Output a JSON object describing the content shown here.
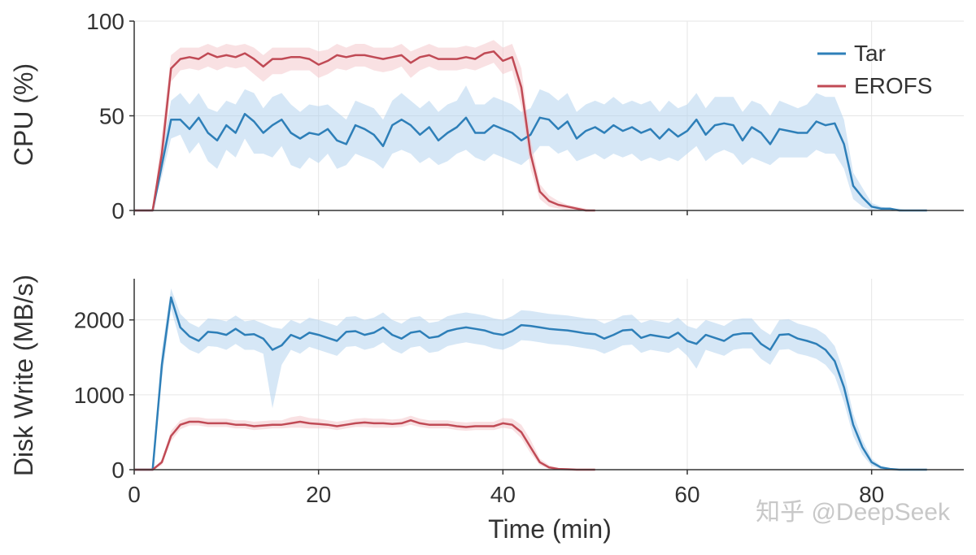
{
  "chart_data": [
    {
      "type": "line",
      "ylabel": "CPU (%)",
      "xlabel": "",
      "xlim": [
        0,
        90
      ],
      "ylim": [
        0,
        100
      ],
      "yticks": [
        0,
        50,
        100
      ],
      "xticks": [
        0,
        20,
        40,
        60,
        80
      ],
      "grid": true,
      "legend": "top-right",
      "series": [
        {
          "name": "Tar",
          "color": "#2e7fb8",
          "band_color": "#aecfee",
          "x": [
            0,
            1,
            2,
            3,
            4,
            5,
            6,
            7,
            8,
            9,
            10,
            11,
            12,
            13,
            14,
            15,
            16,
            17,
            18,
            19,
            20,
            21,
            22,
            23,
            24,
            25,
            26,
            27,
            28,
            29,
            30,
            31,
            32,
            33,
            34,
            35,
            36,
            37,
            38,
            39,
            40,
            41,
            42,
            43,
            44,
            45,
            46,
            47,
            48,
            49,
            50,
            51,
            52,
            53,
            54,
            55,
            56,
            57,
            58,
            59,
            60,
            61,
            62,
            63,
            64,
            65,
            66,
            67,
            68,
            69,
            70,
            71,
            72,
            73,
            74,
            75,
            76,
            77,
            78,
            79,
            80,
            81,
            82,
            83,
            84,
            85,
            86
          ],
          "y": [
            0,
            0,
            0,
            24,
            48,
            48,
            43,
            49,
            41,
            37,
            45,
            41,
            51,
            47,
            41,
            45,
            48,
            41,
            38,
            41,
            40,
            43,
            37,
            35,
            45,
            43,
            40,
            34,
            45,
            48,
            45,
            40,
            44,
            37,
            41,
            44,
            49,
            41,
            41,
            45,
            43,
            41,
            37,
            40,
            49,
            48,
            43,
            47,
            38,
            42,
            44,
            41,
            45,
            42,
            44,
            41,
            43,
            38,
            43,
            39,
            42,
            48,
            40,
            45,
            46,
            45,
            37,
            44,
            41,
            35,
            43,
            42,
            41,
            41,
            47,
            45,
            46,
            35,
            13,
            7,
            2,
            1,
            1,
            0,
            0,
            0,
            0
          ],
          "low": [
            0,
            0,
            0,
            18,
            38,
            40,
            30,
            36,
            26,
            22,
            32,
            28,
            38,
            30,
            30,
            28,
            34,
            24,
            22,
            28,
            25,
            30,
            22,
            24,
            30,
            28,
            26,
            22,
            30,
            32,
            30,
            25,
            28,
            24,
            26,
            30,
            32,
            28,
            26,
            30,
            28,
            26,
            24,
            28,
            34,
            34,
            30,
            32,
            26,
            28,
            30,
            27,
            30,
            28,
            30,
            26,
            28,
            26,
            28,
            26,
            30,
            34,
            26,
            30,
            32,
            30,
            24,
            28,
            26,
            24,
            28,
            28,
            28,
            28,
            32,
            30,
            30,
            22,
            6,
            2,
            0,
            0,
            0,
            0,
            0,
            0,
            0
          ],
          "high": [
            0,
            0,
            0,
            30,
            58,
            62,
            56,
            62,
            54,
            52,
            58,
            56,
            64,
            62,
            54,
            60,
            62,
            56,
            52,
            56,
            55,
            56,
            52,
            48,
            58,
            56,
            54,
            48,
            58,
            62,
            58,
            54,
            58,
            52,
            56,
            58,
            66,
            56,
            56,
            60,
            58,
            56,
            52,
            54,
            64,
            62,
            58,
            62,
            52,
            56,
            58,
            56,
            60,
            56,
            58,
            56,
            58,
            52,
            58,
            54,
            56,
            62,
            54,
            60,
            60,
            60,
            52,
            58,
            56,
            50,
            58,
            56,
            54,
            56,
            62,
            60,
            60,
            48,
            20,
            12,
            4,
            2,
            1,
            1,
            0,
            0,
            0
          ]
        },
        {
          "name": "EROFS",
          "color": "#c04a55",
          "band_color": "#f4c3c8",
          "x": [
            0,
            1,
            2,
            3,
            4,
            5,
            6,
            7,
            8,
            9,
            10,
            11,
            12,
            13,
            14,
            15,
            16,
            17,
            18,
            19,
            20,
            21,
            22,
            23,
            24,
            25,
            26,
            27,
            28,
            29,
            30,
            31,
            32,
            33,
            34,
            35,
            36,
            37,
            38,
            39,
            40,
            41,
            42,
            43,
            44,
            45,
            46,
            47,
            48,
            49,
            50
          ],
          "y": [
            0,
            0,
            0,
            30,
            75,
            80,
            81,
            80,
            83,
            81,
            82,
            81,
            83,
            80,
            76,
            80,
            80,
            81,
            81,
            80,
            77,
            79,
            82,
            81,
            82,
            82,
            81,
            80,
            81,
            82,
            78,
            81,
            82,
            80,
            80,
            80,
            81,
            80,
            83,
            84,
            79,
            81,
            65,
            30,
            10,
            5,
            3,
            2,
            1,
            0,
            0
          ],
          "low": [
            0,
            0,
            0,
            20,
            68,
            74,
            75,
            74,
            76,
            74,
            76,
            75,
            76,
            72,
            68,
            72,
            72,
            74,
            74,
            74,
            70,
            72,
            75,
            74,
            76,
            76,
            74,
            73,
            74,
            76,
            70,
            74,
            76,
            74,
            74,
            74,
            75,
            74,
            76,
            78,
            72,
            74,
            55,
            22,
            6,
            2,
            1,
            0,
            0,
            0,
            0
          ],
          "high": [
            0,
            0,
            0,
            40,
            82,
            86,
            86,
            86,
            88,
            86,
            88,
            87,
            88,
            86,
            82,
            86,
            86,
            86,
            86,
            86,
            84,
            85,
            88,
            86,
            88,
            88,
            86,
            86,
            86,
            88,
            84,
            86,
            88,
            86,
            86,
            86,
            87,
            86,
            88,
            90,
            86,
            88,
            75,
            38,
            14,
            8,
            5,
            3,
            2,
            1,
            0
          ]
        }
      ]
    },
    {
      "type": "line",
      "ylabel": "Disk Write (MB/s)",
      "xlabel": "Time (min)",
      "xlim": [
        0,
        90
      ],
      "ylim": [
        0,
        2550
      ],
      "yticks": [
        0,
        1000,
        2000
      ],
      "xticks": [
        0,
        20,
        40,
        60,
        80
      ],
      "grid": true,
      "series": [
        {
          "name": "Tar",
          "color": "#2e7fb8",
          "band_color": "#aecfee",
          "x": [
            0,
            1,
            2,
            3,
            4,
            5,
            6,
            7,
            8,
            9,
            10,
            11,
            12,
            13,
            14,
            15,
            16,
            17,
            18,
            19,
            20,
            21,
            22,
            23,
            24,
            25,
            26,
            27,
            28,
            29,
            30,
            31,
            32,
            33,
            34,
            35,
            36,
            37,
            38,
            39,
            40,
            41,
            42,
            43,
            44,
            45,
            46,
            47,
            48,
            49,
            50,
            51,
            52,
            53,
            54,
            55,
            56,
            57,
            58,
            59,
            60,
            61,
            62,
            63,
            64,
            65,
            66,
            67,
            68,
            69,
            70,
            71,
            72,
            73,
            74,
            75,
            76,
            77,
            78,
            79,
            80,
            81,
            82,
            83,
            84,
            85,
            86
          ],
          "y": [
            0,
            0,
            0,
            1400,
            2300,
            1900,
            1780,
            1720,
            1840,
            1830,
            1800,
            1880,
            1800,
            1810,
            1750,
            1600,
            1660,
            1800,
            1750,
            1830,
            1800,
            1760,
            1720,
            1840,
            1850,
            1800,
            1830,
            1900,
            1800,
            1750,
            1830,
            1850,
            1760,
            1780,
            1850,
            1880,
            1900,
            1880,
            1860,
            1820,
            1800,
            1850,
            1930,
            1920,
            1900,
            1880,
            1870,
            1860,
            1840,
            1820,
            1810,
            1750,
            1800,
            1860,
            1870,
            1760,
            1800,
            1780,
            1760,
            1830,
            1720,
            1680,
            1800,
            1760,
            1720,
            1800,
            1820,
            1820,
            1680,
            1600,
            1800,
            1810,
            1750,
            1720,
            1680,
            1600,
            1450,
            1100,
            600,
            300,
            100,
            30,
            10,
            0,
            0,
            0,
            0
          ],
          "low": [
            0,
            0,
            0,
            1200,
            2150,
            1700,
            1600,
            1550,
            1650,
            1640,
            1600,
            1680,
            1600,
            1600,
            1550,
            820,
            1400,
            1600,
            1550,
            1640,
            1600,
            1560,
            1520,
            1640,
            1650,
            1600,
            1630,
            1700,
            1600,
            1550,
            1630,
            1650,
            1560,
            1580,
            1650,
            1680,
            1700,
            1680,
            1660,
            1620,
            1600,
            1650,
            1730,
            1720,
            1700,
            1680,
            1670,
            1660,
            1640,
            1620,
            1600,
            1550,
            1600,
            1660,
            1670,
            1560,
            1600,
            1580,
            1560,
            1630,
            1520,
            1350,
            1600,
            1560,
            1520,
            1600,
            1620,
            1620,
            1480,
            1400,
            1600,
            1610,
            1550,
            1520,
            1480,
            1400,
            1250,
            900,
            450,
            200,
            50,
            10,
            0,
            0,
            0,
            0,
            0
          ],
          "high": [
            0,
            0,
            0,
            1600,
            2420,
            2080,
            1960,
            1900,
            2020,
            2010,
            1980,
            2060,
            1980,
            2000,
            1950,
            1900,
            1880,
            2000,
            1950,
            2030,
            2000,
            1960,
            1920,
            2040,
            2050,
            2000,
            2030,
            2100,
            2000,
            1950,
            2030,
            2050,
            1960,
            1980,
            2050,
            2080,
            2100,
            2080,
            2060,
            2020,
            2000,
            2050,
            2130,
            2120,
            2100,
            2080,
            2070,
            2060,
            2040,
            2020,
            2010,
            1950,
            2000,
            2060,
            2070,
            1960,
            2000,
            1980,
            1960,
            2030,
            1920,
            1880,
            2000,
            1960,
            1920,
            2000,
            2020,
            2020,
            1880,
            1800,
            2000,
            2010,
            1950,
            1920,
            1880,
            1800,
            1650,
            1300,
            750,
            400,
            150,
            50,
            20,
            5,
            0,
            0,
            0
          ]
        },
        {
          "name": "EROFS",
          "color": "#c04a55",
          "band_color": "#f4c3c8",
          "x": [
            0,
            1,
            2,
            3,
            4,
            5,
            6,
            7,
            8,
            9,
            10,
            11,
            12,
            13,
            14,
            15,
            16,
            17,
            18,
            19,
            20,
            21,
            22,
            23,
            24,
            25,
            26,
            27,
            28,
            29,
            30,
            31,
            32,
            33,
            34,
            35,
            36,
            37,
            38,
            39,
            40,
            41,
            42,
            43,
            44,
            45,
            46,
            47,
            48,
            49,
            50
          ],
          "y": [
            0,
            0,
            0,
            100,
            450,
            600,
            640,
            640,
            620,
            620,
            620,
            600,
            600,
            580,
            590,
            600,
            600,
            620,
            640,
            620,
            610,
            600,
            580,
            600,
            620,
            630,
            620,
            620,
            610,
            620,
            660,
            620,
            600,
            600,
            600,
            580,
            570,
            580,
            580,
            580,
            620,
            600,
            500,
            300,
            100,
            30,
            10,
            5,
            0,
            0,
            0
          ],
          "low": [
            0,
            0,
            0,
            60,
            380,
            540,
            590,
            590,
            570,
            570,
            570,
            550,
            550,
            530,
            540,
            550,
            550,
            560,
            560,
            550,
            550,
            550,
            530,
            550,
            570,
            570,
            560,
            560,
            560,
            570,
            600,
            570,
            550,
            550,
            550,
            530,
            520,
            530,
            530,
            530,
            560,
            540,
            420,
            220,
            60,
            10,
            0,
            0,
            0,
            0,
            0
          ],
          "high": [
            0,
            0,
            0,
            140,
            520,
            660,
            700,
            700,
            680,
            680,
            680,
            660,
            660,
            640,
            650,
            660,
            660,
            700,
            720,
            690,
            680,
            660,
            640,
            660,
            680,
            690,
            680,
            680,
            670,
            680,
            720,
            680,
            660,
            660,
            660,
            640,
            630,
            640,
            640,
            640,
            690,
            680,
            600,
            400,
            150,
            60,
            25,
            12,
            5,
            0,
            0
          ]
        }
      ]
    }
  ],
  "watermark": "知乎 @DeepSeek"
}
